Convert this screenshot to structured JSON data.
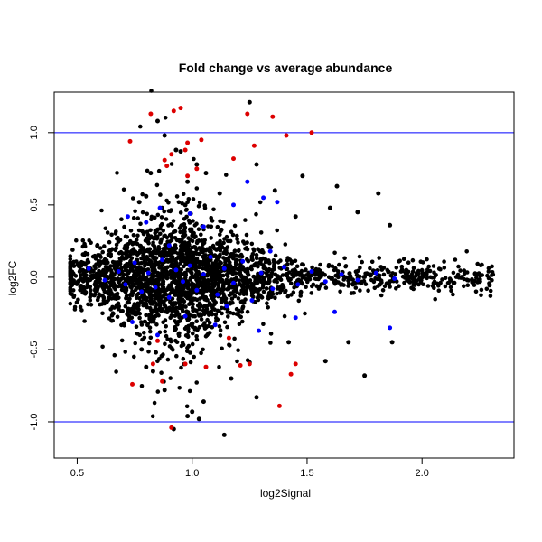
{
  "chart_data": {
    "type": "scatter",
    "title": "Fold change vs average abundance",
    "xlabel": "log2Signal",
    "ylabel": "log2FC",
    "xlim": [
      0.4,
      2.4
    ],
    "ylim": [
      -1.25,
      1.28
    ],
    "xticks": [
      0.5,
      1.0,
      1.5,
      2.0
    ],
    "xtick_labels": [
      "0.5",
      "1.0",
      "1.5",
      "2.0"
    ],
    "yticks": [
      -1.0,
      -0.5,
      0.0,
      0.5,
      1.0
    ],
    "ytick_labels": [
      "-1.0",
      "-0.5",
      "0.0",
      "0.5",
      "1.0"
    ],
    "grid": false,
    "reference_lines": [
      {
        "orientation": "horizontal",
        "y": 1.0,
        "color": "#0000ff"
      },
      {
        "orientation": "horizontal",
        "y": -1.0,
        "color": "#0000ff"
      }
    ],
    "series": [
      {
        "color": "#000000",
        "points": [
          [
            1.25,
            1.21
          ],
          [
            0.85,
            1.08
          ],
          [
            0.88,
            0.98
          ],
          [
            0.93,
            0.88
          ],
          [
            0.95,
            0.87
          ],
          [
            1.02,
            0.78
          ],
          [
            1.06,
            0.72
          ],
          [
            1.48,
            0.7
          ],
          [
            1.63,
            0.63
          ],
          [
            1.81,
            0.58
          ],
          [
            1.36,
            0.6
          ],
          [
            1.12,
            0.58
          ],
          [
            0.8,
            0.56
          ],
          [
            0.77,
            0.52
          ],
          [
            0.97,
            0.5
          ],
          [
            1.6,
            0.48
          ],
          [
            1.72,
            0.45
          ],
          [
            1.45,
            0.42
          ],
          [
            1.86,
            0.36
          ],
          [
            1.28,
            0.78
          ],
          [
            0.82,
            0.72
          ],
          [
            0.98,
            0.66
          ],
          [
            1.42,
            -0.45
          ],
          [
            1.58,
            -0.58
          ],
          [
            1.68,
            -0.45
          ],
          [
            1.75,
            -0.68
          ],
          [
            1.87,
            -0.45
          ],
          [
            1.28,
            -0.83
          ],
          [
            1.0,
            -0.93
          ],
          [
            1.05,
            -0.86
          ],
          [
            0.98,
            -0.96
          ],
          [
            1.03,
            -0.98
          ],
          [
            1.14,
            -1.09
          ],
          [
            0.92,
            -1.05
          ],
          [
            0.88,
            -0.78
          ],
          [
            0.83,
            -0.65
          ],
          [
            0.8,
            -0.62
          ],
          [
            1.17,
            -0.7
          ],
          [
            1.25,
            -0.59
          ],
          [
            0.78,
            -0.5
          ]
        ]
      },
      {
        "color": "#dd0000",
        "points": [
          [
            0.82,
            1.13
          ],
          [
            0.92,
            1.15
          ],
          [
            0.95,
            1.17
          ],
          [
            1.24,
            1.13
          ],
          [
            1.35,
            1.11
          ],
          [
            1.52,
            1.0
          ],
          [
            1.41,
            0.98
          ],
          [
            1.04,
            0.95
          ],
          [
            0.73,
            0.94
          ],
          [
            0.98,
            0.93
          ],
          [
            1.27,
            0.91
          ],
          [
            0.97,
            0.88
          ],
          [
            0.91,
            0.85
          ],
          [
            0.88,
            0.81
          ],
          [
            1.18,
            0.82
          ],
          [
            1.02,
            0.75
          ],
          [
            0.89,
            0.77
          ],
          [
            0.98,
            0.7
          ],
          [
            0.74,
            -0.74
          ],
          [
            0.83,
            -0.6
          ],
          [
            0.97,
            -0.6
          ],
          [
            1.21,
            -0.61
          ],
          [
            1.25,
            -0.6
          ],
          [
            1.06,
            -0.62
          ],
          [
            1.43,
            -0.67
          ],
          [
            1.38,
            -0.89
          ],
          [
            0.91,
            -1.04
          ],
          [
            0.87,
            -0.72
          ],
          [
            1.45,
            -0.6
          ],
          [
            1.16,
            -0.42
          ],
          [
            0.85,
            -0.44
          ]
        ]
      },
      {
        "color": "#0000ff",
        "points": [
          [
            0.55,
            0.06
          ],
          [
            0.62,
            -0.02
          ],
          [
            0.68,
            0.04
          ],
          [
            0.71,
            -0.05
          ],
          [
            0.75,
            0.1
          ],
          [
            0.78,
            -0.1
          ],
          [
            0.81,
            0.03
          ],
          [
            0.84,
            -0.07
          ],
          [
            0.87,
            0.12
          ],
          [
            0.9,
            -0.14
          ],
          [
            0.93,
            0.05
          ],
          [
            0.96,
            -0.03
          ],
          [
            0.99,
            0.08
          ],
          [
            1.02,
            -0.09
          ],
          [
            1.05,
            0.02
          ],
          [
            1.08,
            0.14
          ],
          [
            1.11,
            -0.12
          ],
          [
            1.14,
            0.06
          ],
          [
            1.18,
            -0.04
          ],
          [
            1.22,
            0.11
          ],
          [
            1.26,
            -0.16
          ],
          [
            1.3,
            0.03
          ],
          [
            1.35,
            -0.08
          ],
          [
            1.4,
            0.07
          ],
          [
            1.46,
            -0.05
          ],
          [
            1.52,
            0.04
          ],
          [
            1.58,
            -0.03
          ],
          [
            1.65,
            0.02
          ],
          [
            1.72,
            -0.02
          ],
          [
            1.8,
            0.03
          ],
          [
            1.88,
            -0.01
          ],
          [
            0.72,
            0.42
          ],
          [
            0.8,
            0.38
          ],
          [
            0.86,
            0.48
          ],
          [
            0.99,
            0.44
          ],
          [
            1.05,
            0.35
          ],
          [
            1.18,
            0.5
          ],
          [
            1.24,
            0.66
          ],
          [
            1.31,
            0.55
          ],
          [
            1.37,
            0.52
          ],
          [
            0.74,
            -0.31
          ],
          [
            0.85,
            -0.4
          ],
          [
            0.97,
            -0.27
          ],
          [
            1.1,
            -0.33
          ],
          [
            1.29,
            -0.37
          ],
          [
            1.45,
            -0.28
          ],
          [
            1.62,
            -0.24
          ],
          [
            1.86,
            -0.35
          ],
          [
            0.9,
            0.22
          ],
          [
            1.15,
            -0.2
          ],
          [
            1.34,
            0.18
          ]
        ]
      }
    ],
    "background_cloud": {
      "color": "#000000",
      "description_free_params": true,
      "count": 2600,
      "x_range": [
        0.47,
        2.31
      ],
      "center_x": 0.92,
      "spread_core": 0.065,
      "spread_tail": 0.32
    }
  }
}
